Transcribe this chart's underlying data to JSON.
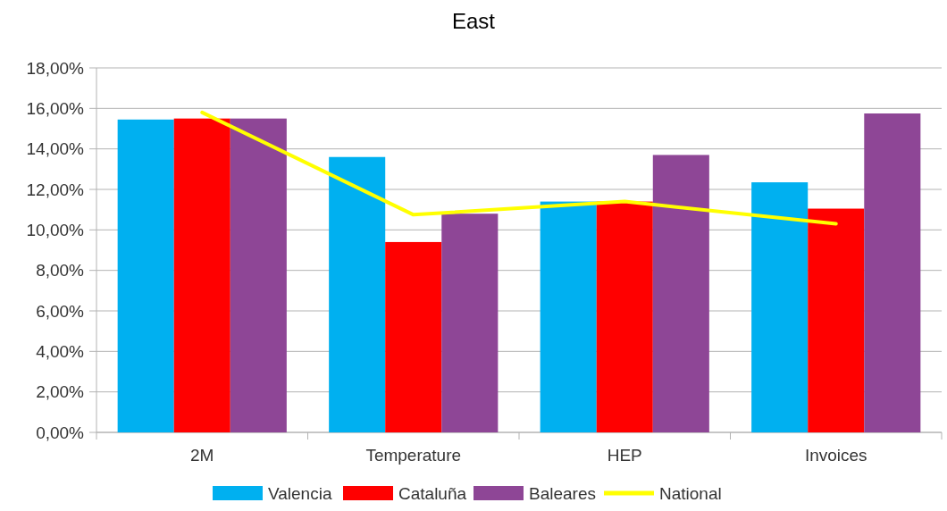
{
  "chart_data": {
    "type": "bar",
    "title": "East",
    "categories": [
      "2M",
      "Temperature",
      "HEP",
      "Invoices"
    ],
    "series": [
      {
        "name": "Valencia",
        "color": "#00b0f0",
        "values": [
          15.45,
          13.6,
          11.4,
          12.35
        ]
      },
      {
        "name": "Cataluña",
        "color": "#ff0000",
        "values": [
          15.5,
          9.4,
          11.4,
          11.05
        ]
      },
      {
        "name": "Baleares",
        "color": "#8e4696",
        "values": [
          15.5,
          10.8,
          13.7,
          15.75
        ]
      },
      {
        "name": "National",
        "type": "line",
        "color": "#ffff00",
        "values": [
          15.8,
          10.75,
          11.4,
          10.3
        ]
      }
    ],
    "ylim": [
      0,
      18
    ],
    "yticks": [
      {
        "value": 0,
        "label": "0,00%"
      },
      {
        "value": 2,
        "label": "2,00%"
      },
      {
        "value": 4,
        "label": "4,00%"
      },
      {
        "value": 6,
        "label": "6,00%"
      },
      {
        "value": 8,
        "label": "8,00%"
      },
      {
        "value": 10,
        "label": "10,00%"
      },
      {
        "value": 12,
        "label": "12,00%"
      },
      {
        "value": 14,
        "label": "14,00%"
      },
      {
        "value": 16,
        "label": "16,00%"
      },
      {
        "value": 18,
        "label": "18,00%"
      }
    ],
    "grid": "y",
    "legend": "bottom"
  }
}
